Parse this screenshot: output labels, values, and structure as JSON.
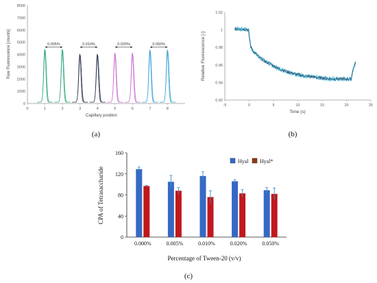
{
  "panels": [
    {
      "caption": "(a)",
      "chart_data": {
        "type": "line",
        "xlabel": "Capillary position",
        "ylabel": "Raw Fluorescence [counts]",
        "xlim": [
          0,
          9
        ],
        "ylim": [
          0,
          8000
        ],
        "xticks": [
          0,
          1,
          2,
          3,
          4,
          5,
          6,
          7,
          8
        ],
        "yticks": [
          0,
          1000,
          2000,
          3000,
          4000,
          5000,
          6000,
          7000,
          8000
        ],
        "grid": false,
        "annotations": [
          {
            "label": "0.005%",
            "x_from": 1,
            "x_to": 2,
            "y": 4600
          },
          {
            "label": "0.010%",
            "x_from": 3,
            "x_to": 4,
            "y": 4600
          },
          {
            "label": "0.020%",
            "x_from": 5,
            "x_to": 6,
            "y": 4600
          },
          {
            "label": "0.050%",
            "x_from": 7,
            "x_to": 8,
            "y": 4600
          }
        ],
        "peaks": [
          {
            "x": 1,
            "height": 4450,
            "color": "#2fa77a"
          },
          {
            "x": 2,
            "height": 4450,
            "color": "#2fa77a"
          },
          {
            "x": 3,
            "height": 4050,
            "color": "#26304a"
          },
          {
            "x": 4,
            "height": 4050,
            "color": "#26304a"
          },
          {
            "x": 5,
            "height": 4150,
            "color": "#cc6fd0"
          },
          {
            "x": 6,
            "height": 4150,
            "color": "#cc6fd0"
          },
          {
            "x": 7,
            "height": 4400,
            "color": "#3aa3d8"
          },
          {
            "x": 8,
            "height": 4400,
            "color": "#3aa3d8"
          }
        ]
      }
    },
    {
      "caption": "(b)",
      "chart_data": {
        "type": "line",
        "xlabel": "Time (s)",
        "ylabel": "Relative Fluorescence [-]",
        "xlim": [
          -5,
          25
        ],
        "ylim": [
          0.92,
          1.02
        ],
        "xticks": [
          -5,
          0,
          5,
          10,
          15,
          20,
          25
        ],
        "yticks": [
          0.92,
          0.94,
          0.96,
          0.98,
          1,
          1.02
        ],
        "ytick_labels": [
          "0.92",
          "0.94",
          "0.96",
          "0.98",
          "1",
          "1.02"
        ],
        "grid": false,
        "series_colors": [
          "#26304a",
          "#3aa3d8",
          "#6fd6e6"
        ],
        "x": [
          -3,
          -1,
          -0.1,
          0,
          0.3,
          0.8,
          1.5,
          2.5,
          4,
          6,
          8,
          10,
          12,
          15,
          18,
          21,
          21.2,
          21.6,
          21.9
        ],
        "y": [
          1.001,
          1.001,
          1.0,
          0.993,
          0.981,
          0.976,
          0.972,
          0.967,
          0.962,
          0.956,
          0.952,
          0.949,
          0.947,
          0.945,
          0.944,
          0.944,
          0.951,
          0.959,
          0.963
        ]
      }
    },
    {
      "caption": "(c)",
      "chart_data": {
        "type": "bar",
        "xlabel": "Percentage of Tween-20 (v/v)",
        "ylabel": "CPA of Tetrasaccharide",
        "categories": [
          "0.000%",
          "0.005%",
          "0.010%",
          "0.020%",
          "0.050%"
        ],
        "ylim": [
          0,
          160
        ],
        "yticks": [
          0,
          40,
          80,
          120,
          160
        ],
        "grid": false,
        "legend_position": "top-right",
        "series": [
          {
            "name": "Hyal",
            "values": [
              129,
              105,
              116,
              106,
              89
            ],
            "errors": [
              4,
              12,
              8,
              3,
              5
            ],
            "color": "#3569c3"
          },
          {
            "name": "Hyal*",
            "values": [
              97,
              88,
              76,
              83,
              82
            ],
            "errors": [
              1,
              6,
              12,
              7,
              11
            ],
            "color": "#c0191d"
          }
        ]
      }
    }
  ]
}
